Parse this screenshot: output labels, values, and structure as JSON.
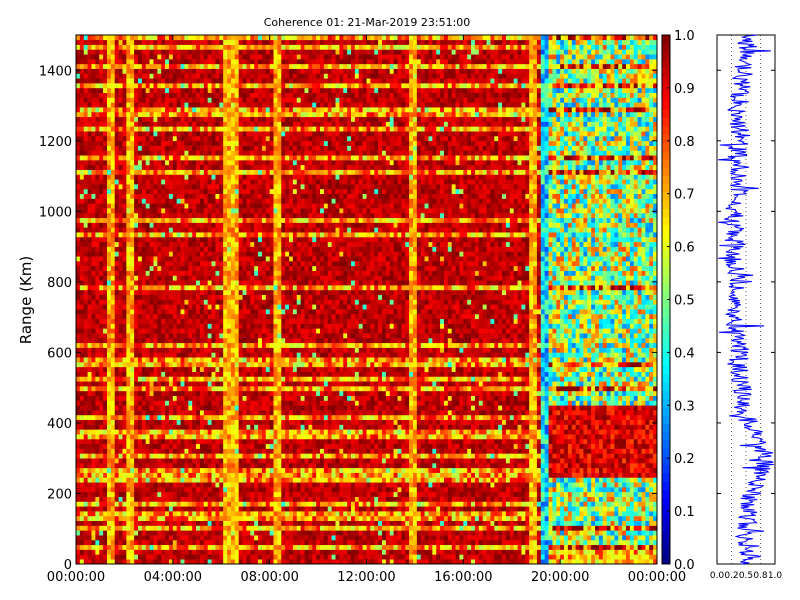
{
  "chart_data": [
    {
      "type": "heatmap",
      "title": "Coherence 01: 21-Mar-2019 23:51:00",
      "xlabel": "",
      "ylabel": "Range (Km)",
      "x_ticks": [
        "00:00:00",
        "04:00:00",
        "08:00:00",
        "12:00:00",
        "16:00:00",
        "20:00:00",
        "00:00:00"
      ],
      "y_ticks": [
        "0",
        "200",
        "400",
        "600",
        "800",
        "1000",
        "1200",
        "1400"
      ],
      "y_tick_values": [
        0,
        200,
        400,
        600,
        800,
        1000,
        1200,
        1400
      ],
      "xlim_hours": [
        0,
        24
      ],
      "ylim": [
        0,
        1500
      ],
      "colormap": "jet",
      "colorbar": {
        "ticks": [
          "0.0",
          "0.1",
          "0.2",
          "0.3",
          "0.4",
          "0.5",
          "0.6",
          "0.7",
          "0.8",
          "0.9",
          "1.0"
        ],
        "tick_values": [
          0.0,
          0.1,
          0.2,
          0.3,
          0.4,
          0.5,
          0.6,
          0.7,
          0.8,
          0.9,
          1.0
        ],
        "range": [
          0,
          1
        ]
      },
      "description_values": {
        "dominant_value": 0.95,
        "bright_time_columns_hours": [
          1.4,
          2.2,
          6.2,
          6.6,
          8.3,
          13.9,
          18.9,
          19.5
        ],
        "transition_time_hours": 19.5
      }
    },
    {
      "type": "line",
      "x_ticks": [
        "0.0",
        "0.2",
        "0.5",
        "0.8",
        "1.0"
      ],
      "x_tick_values": [
        0.0,
        0.25,
        0.5,
        0.75,
        1.0
      ],
      "xlim": [
        0,
        1
      ],
      "ylim": [
        0,
        1500
      ],
      "color": "#0000ff",
      "profile": [
        {
          "range": 0,
          "value": 0.5
        },
        {
          "range": 40,
          "value": 0.6
        },
        {
          "range": 80,
          "value": 0.45
        },
        {
          "range": 120,
          "value": 0.55
        },
        {
          "range": 160,
          "value": 0.5
        },
        {
          "range": 200,
          "value": 0.6
        },
        {
          "range": 240,
          "value": 0.75
        },
        {
          "range": 280,
          "value": 0.85
        },
        {
          "range": 320,
          "value": 0.8
        },
        {
          "range": 360,
          "value": 0.7
        },
        {
          "range": 400,
          "value": 0.55
        },
        {
          "range": 450,
          "value": 0.4
        },
        {
          "range": 500,
          "value": 0.45
        },
        {
          "range": 560,
          "value": 0.35
        },
        {
          "range": 620,
          "value": 0.4
        },
        {
          "range": 680,
          "value": 0.3
        },
        {
          "range": 740,
          "value": 0.25
        },
        {
          "range": 800,
          "value": 0.35
        },
        {
          "range": 860,
          "value": 0.3
        },
        {
          "range": 920,
          "value": 0.35
        },
        {
          "range": 980,
          "value": 0.3
        },
        {
          "range": 1040,
          "value": 0.35
        },
        {
          "range": 1100,
          "value": 0.4
        },
        {
          "range": 1160,
          "value": 0.35
        },
        {
          "range": 1220,
          "value": 0.4
        },
        {
          "range": 1280,
          "value": 0.35
        },
        {
          "range": 1340,
          "value": 0.4
        },
        {
          "range": 1400,
          "value": 0.45
        },
        {
          "range": 1450,
          "value": 0.5
        },
        {
          "range": 1500,
          "value": 0.55
        }
      ]
    }
  ]
}
